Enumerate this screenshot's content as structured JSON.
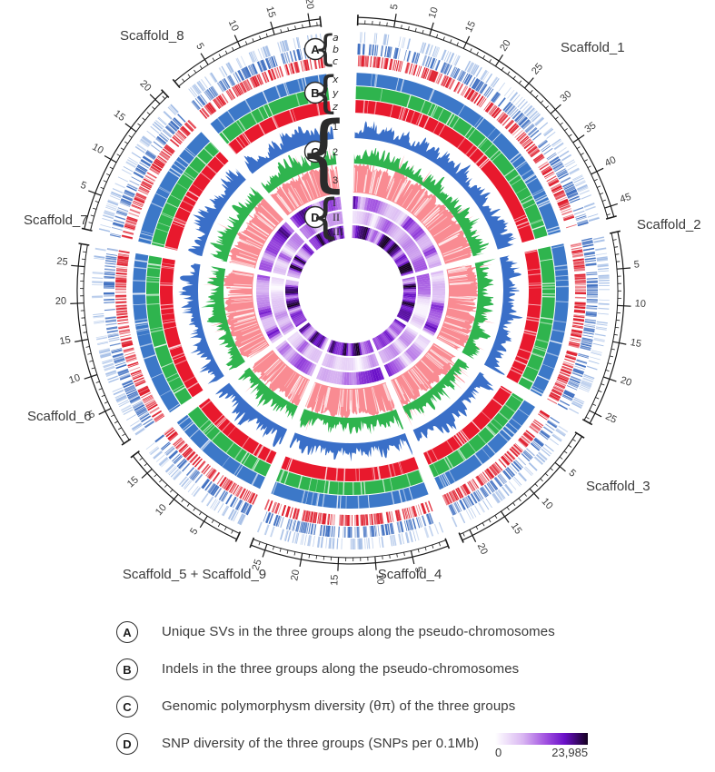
{
  "chart_data": {
    "type": "circos",
    "tick_units": "Mb",
    "scaffolds": [
      {
        "name": "Scaffold_1",
        "length_mb": 46.5,
        "tick_labels": [
          5,
          10,
          15,
          20,
          25,
          30,
          35,
          40,
          45
        ]
      },
      {
        "name": "Scaffold_2",
        "length_mb": 26.5,
        "tick_labels": [
          5,
          10,
          15,
          20,
          25
        ]
      },
      {
        "name": "Scaffold_3",
        "length_mb": 21.5,
        "tick_labels": [
          5,
          10,
          15,
          20
        ]
      },
      {
        "name": "Scaffold_4",
        "length_mb": 27.0,
        "tick_labels": [
          5,
          10,
          15,
          20,
          25
        ]
      },
      {
        "name": "Scaffold_5 + Scaffold_9",
        "length_mb": 18.0,
        "tick_labels": [
          5,
          10,
          15
        ]
      },
      {
        "name": "Scaffold_6",
        "length_mb": 28.0,
        "tick_labels": [
          5,
          10,
          15,
          20,
          25
        ]
      },
      {
        "name": "Scaffold_7",
        "length_mb": 21.5,
        "tick_labels": [
          5,
          10,
          15,
          20
        ]
      },
      {
        "name": "Scaffold_8",
        "length_mb": 21.5,
        "tick_labels": [
          5,
          10,
          15,
          20
        ]
      }
    ],
    "tracks": [
      {
        "id": "A",
        "style": "tick-density",
        "sublabels": [
          "a",
          "b",
          "c"
        ],
        "colors": [
          "#a3bde6",
          "#3f6fc1",
          "#e01f2e"
        ]
      },
      {
        "id": "B",
        "style": "solid-ring",
        "sublabels": [
          "x",
          "y",
          "z"
        ],
        "colors": [
          "#3c78c8",
          "#2fb44e",
          "#e8192d"
        ]
      },
      {
        "id": "C",
        "style": "histogram",
        "sublabels": [
          "1",
          "2",
          "3"
        ],
        "colors": [
          "#3a6fc8",
          "#2fb44e",
          "#f98b92"
        ]
      },
      {
        "id": "D",
        "style": "heatmap",
        "sublabels": [
          "I",
          "II",
          "III"
        ],
        "colormap": [
          {
            "pos": 0.0,
            "color": "#ffffff"
          },
          {
            "pos": 0.3,
            "color": "#d9b6f2"
          },
          {
            "pos": 0.55,
            "color": "#a050e0"
          },
          {
            "pos": 0.75,
            "color": "#6a10c8"
          },
          {
            "pos": 1.0,
            "color": "#140020"
          }
        ]
      }
    ],
    "colorbar": {
      "min": "0",
      "max": "23,985"
    }
  },
  "legend": {
    "rows": [
      {
        "key": "A",
        "text": "Unique SVs in the three groups along the pseudo-chromosomes"
      },
      {
        "key": "B",
        "text": "Indels in the three groups along the pseudo-chromosomes"
      },
      {
        "key": "C",
        "text": "Genomic polymorphysm diversity (θπ) of the three groups"
      },
      {
        "key": "D",
        "text": "SNP diversity of the three groups (SNPs per 0.1Mb)"
      }
    ]
  }
}
